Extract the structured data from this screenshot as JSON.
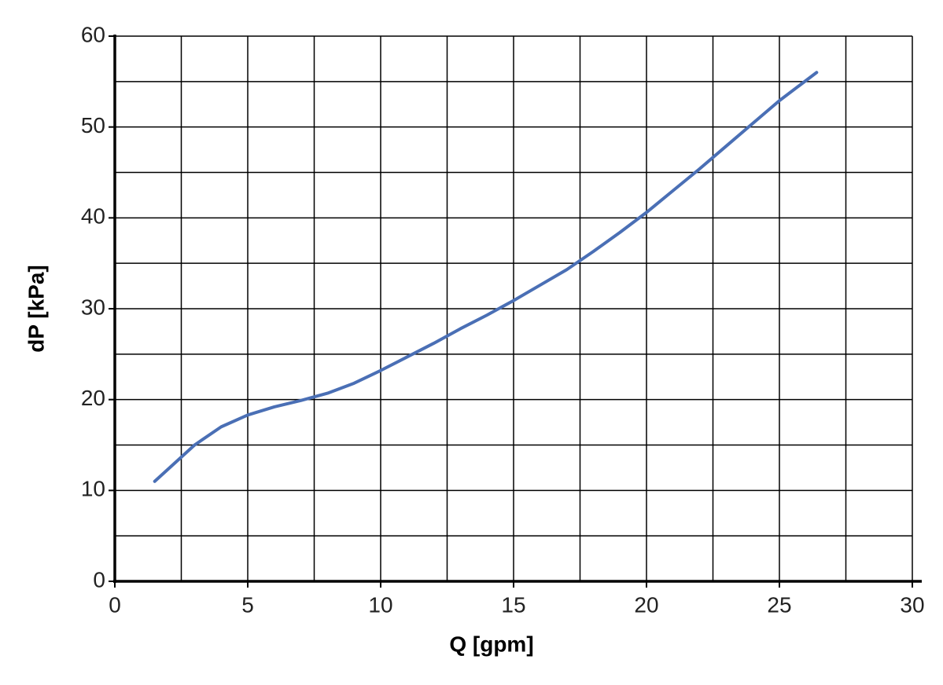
{
  "chart_data": {
    "type": "line",
    "xlabel": "Q [gpm]",
    "ylabel": "dP [kPa]",
    "xlim": [
      0,
      30
    ],
    "ylim": [
      0,
      60
    ],
    "xticks": [
      0,
      5,
      10,
      15,
      20,
      25,
      30
    ],
    "yticks": [
      0,
      10,
      20,
      30,
      40,
      50,
      60
    ],
    "x_minor_grid": [
      2.5,
      7.5,
      12.5,
      17.5,
      22.5,
      27.5
    ],
    "y_minor_grid": [
      5,
      15,
      25,
      35,
      45,
      55
    ],
    "grid": true,
    "x": [
      1.5,
      3,
      4,
      5,
      6,
      7,
      8,
      9,
      10,
      11,
      12,
      13,
      14,
      15,
      16,
      17,
      18,
      19,
      20,
      21,
      22,
      23,
      24,
      25,
      26.4
    ],
    "series": [
      {
        "color": "#4a6fb5",
        "values": [
          11,
          15,
          17,
          18.3,
          19.2,
          19.9,
          20.7,
          21.8,
          23.2,
          24.7,
          26.2,
          27.8,
          29.3,
          30.9,
          32.6,
          34.3,
          36.3,
          38.4,
          40.6,
          43.0,
          45.4,
          47.9,
          50.4,
          52.9,
          56
        ]
      }
    ]
  }
}
